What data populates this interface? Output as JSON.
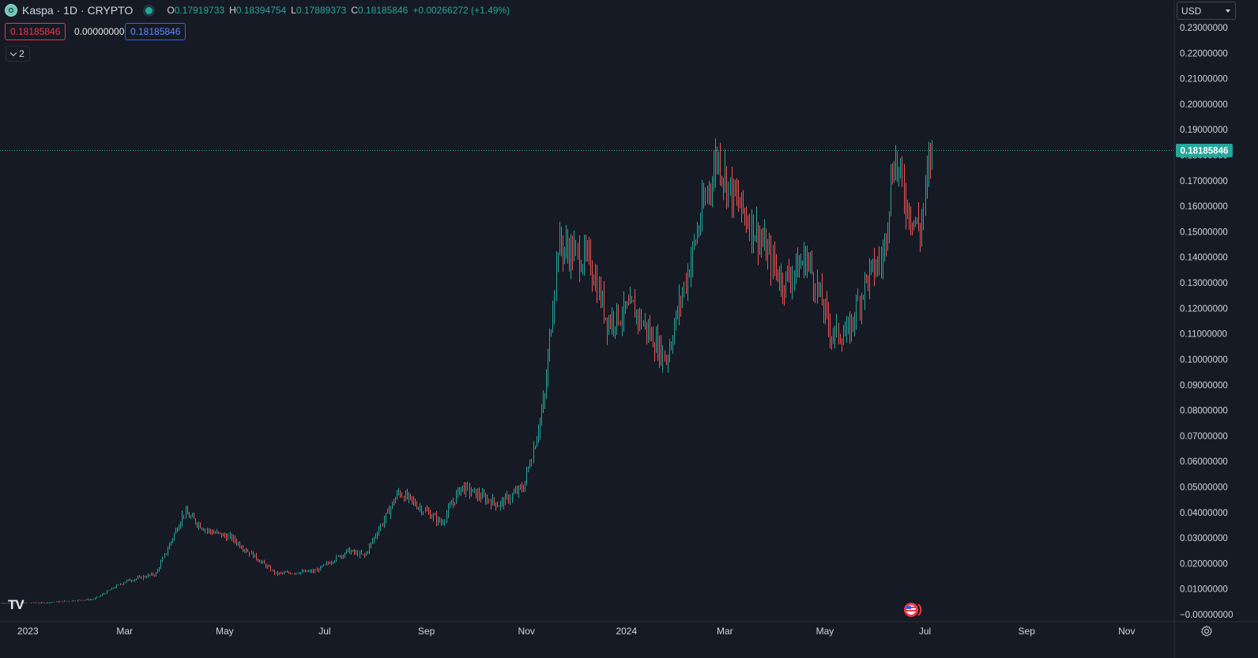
{
  "header": {
    "symbol": "Kaspa · 1D · CRYPTO",
    "ohlc": {
      "open_label": "O",
      "open": "0.17919733",
      "high_label": "H",
      "high": "0.18394754",
      "low_label": "L",
      "low": "0.17889373",
      "close_label": "C",
      "close": "0.18185846",
      "change": "+0.00266272 (+1.49%)"
    }
  },
  "price_boxes": {
    "sell": "0.18185846",
    "spread": "0.00000000",
    "buy": "0.18185846"
  },
  "indicators_toggle": {
    "count": "2"
  },
  "currency_selector": {
    "value": "USD"
  },
  "last_price_label": "0.18185846",
  "colors": {
    "up": "#26a69a",
    "down": "#ef5350",
    "background": "#161a25",
    "last_price": "#26a69a",
    "grid": "#2a2e39"
  },
  "icons": {
    "logo": "kaspa-logo-icon",
    "status": "market-status-icon",
    "flag": "us-flag-icon",
    "settings": "gear-icon",
    "brand": "tradingview-logo-icon"
  },
  "brand_text": "TV",
  "chart_data": {
    "type": "candlestick",
    "title": "Kaspa · 1D · CRYPTO",
    "x_tick_labels": [
      "2023",
      "Mar",
      "May",
      "Jul",
      "Sep",
      "Nov",
      "2024",
      "Mar",
      "May",
      "Jul",
      "Sep",
      "Nov"
    ],
    "y_tick_labels": [
      "0.23000000",
      "0.22000000",
      "0.21000000",
      "0.20000000",
      "0.19000000",
      "0.18000000",
      "0.17000000",
      "0.16000000",
      "0.15000000",
      "0.14000000",
      "0.13000000",
      "0.12000000",
      "0.11000000",
      "0.10000000",
      "0.09000000",
      "0.08000000",
      "0.07000000",
      "0.06000000",
      "0.05000000",
      "0.04000000",
      "0.03000000",
      "0.02000000",
      "0.01000000",
      "−0.00000000"
    ],
    "y_range": [
      0,
      0.23
    ],
    "y_ticks": [
      0.23,
      0.22,
      0.21,
      0.2,
      0.19,
      0.18,
      0.17,
      0.16,
      0.15,
      0.14,
      0.13,
      0.12,
      0.11,
      0.1,
      0.09,
      0.08,
      0.07,
      0.06,
      0.05,
      0.04,
      0.03,
      0.02,
      0.01,
      0
    ],
    "x_range": [
      "2022-12-15",
      "2024-11-30"
    ],
    "x_ticks": [
      "2023-01-01",
      "2023-03-01",
      "2023-05-01",
      "2023-07-01",
      "2023-09-01",
      "2023-11-01",
      "2024-01-01",
      "2024-03-01",
      "2024-05-01",
      "2024-07-01",
      "2024-09-01",
      "2024-11-01"
    ],
    "last_price": 0.18185846,
    "grid": false,
    "series_close_anchors": [
      {
        "date": "2022-12-15",
        "close": 0.0045
      },
      {
        "date": "2023-01-10",
        "close": 0.0046
      },
      {
        "date": "2023-02-10",
        "close": 0.006
      },
      {
        "date": "2023-03-01",
        "close": 0.013
      },
      {
        "date": "2023-03-20",
        "close": 0.016
      },
      {
        "date": "2023-04-06",
        "close": 0.04
      },
      {
        "date": "2023-04-20",
        "close": 0.033
      },
      {
        "date": "2023-05-05",
        "close": 0.03
      },
      {
        "date": "2023-06-01",
        "close": 0.016
      },
      {
        "date": "2023-06-25",
        "close": 0.017
      },
      {
        "date": "2023-07-15",
        "close": 0.025
      },
      {
        "date": "2023-07-25",
        "close": 0.023
      },
      {
        "date": "2023-08-15",
        "close": 0.048
      },
      {
        "date": "2023-09-10",
        "close": 0.036
      },
      {
        "date": "2023-09-22",
        "close": 0.05
      },
      {
        "date": "2023-10-15",
        "close": 0.043
      },
      {
        "date": "2023-10-30",
        "close": 0.05
      },
      {
        "date": "2023-11-05",
        "close": 0.065
      },
      {
        "date": "2023-11-12",
        "close": 0.085
      },
      {
        "date": "2023-11-20",
        "close": 0.145
      },
      {
        "date": "2023-12-10",
        "close": 0.138
      },
      {
        "date": "2023-12-20",
        "close": 0.115
      },
      {
        "date": "2024-01-05",
        "close": 0.12
      },
      {
        "date": "2024-01-25",
        "close": 0.1
      },
      {
        "date": "2024-02-15",
        "close": 0.155
      },
      {
        "date": "2024-02-25",
        "close": 0.18
      },
      {
        "date": "2024-03-05",
        "close": 0.165
      },
      {
        "date": "2024-03-20",
        "close": 0.15
      },
      {
        "date": "2024-04-05",
        "close": 0.13
      },
      {
        "date": "2024-04-20",
        "close": 0.14
      },
      {
        "date": "2024-05-05",
        "close": 0.11
      },
      {
        "date": "2024-05-15",
        "close": 0.11
      },
      {
        "date": "2024-05-25",
        "close": 0.13
      },
      {
        "date": "2024-06-05",
        "close": 0.14
      },
      {
        "date": "2024-06-12",
        "close": 0.18
      },
      {
        "date": "2024-06-20",
        "close": 0.16
      },
      {
        "date": "2024-06-28",
        "close": 0.15
      },
      {
        "date": "2024-07-04",
        "close": 0.18
      },
      {
        "date": "2024-07-05",
        "close": 0.18185846
      }
    ]
  }
}
